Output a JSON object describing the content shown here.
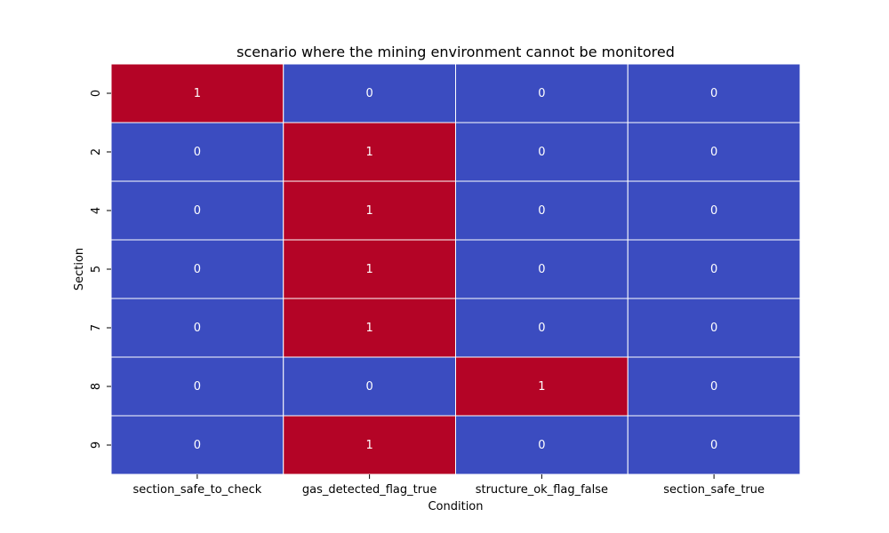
{
  "chart_data": {
    "type": "heatmap",
    "title": "scenario where the mining environment cannot be monitored",
    "xlabel": "Condition",
    "ylabel": "Section",
    "x_categories": [
      "section_safe_to_check",
      "gas_detected_flag_true",
      "structure_ok_flag_false",
      "section_safe_true"
    ],
    "y_categories": [
      "0",
      "2",
      "4",
      "5",
      "7",
      "8",
      "9"
    ],
    "values": [
      [
        1,
        0,
        0,
        0
      ],
      [
        0,
        1,
        0,
        0
      ],
      [
        0,
        1,
        0,
        0
      ],
      [
        0,
        1,
        0,
        0
      ],
      [
        0,
        1,
        0,
        0
      ],
      [
        0,
        0,
        1,
        0
      ],
      [
        0,
        1,
        0,
        0
      ]
    ],
    "value_range": [
      0,
      1
    ],
    "annotations_shown": true,
    "colorbar": false,
    "colors": {
      "low": "#3b4cc0",
      "high": "#b40426",
      "cell_border": "#ffffff",
      "annotation_text": "#ffffff"
    }
  }
}
